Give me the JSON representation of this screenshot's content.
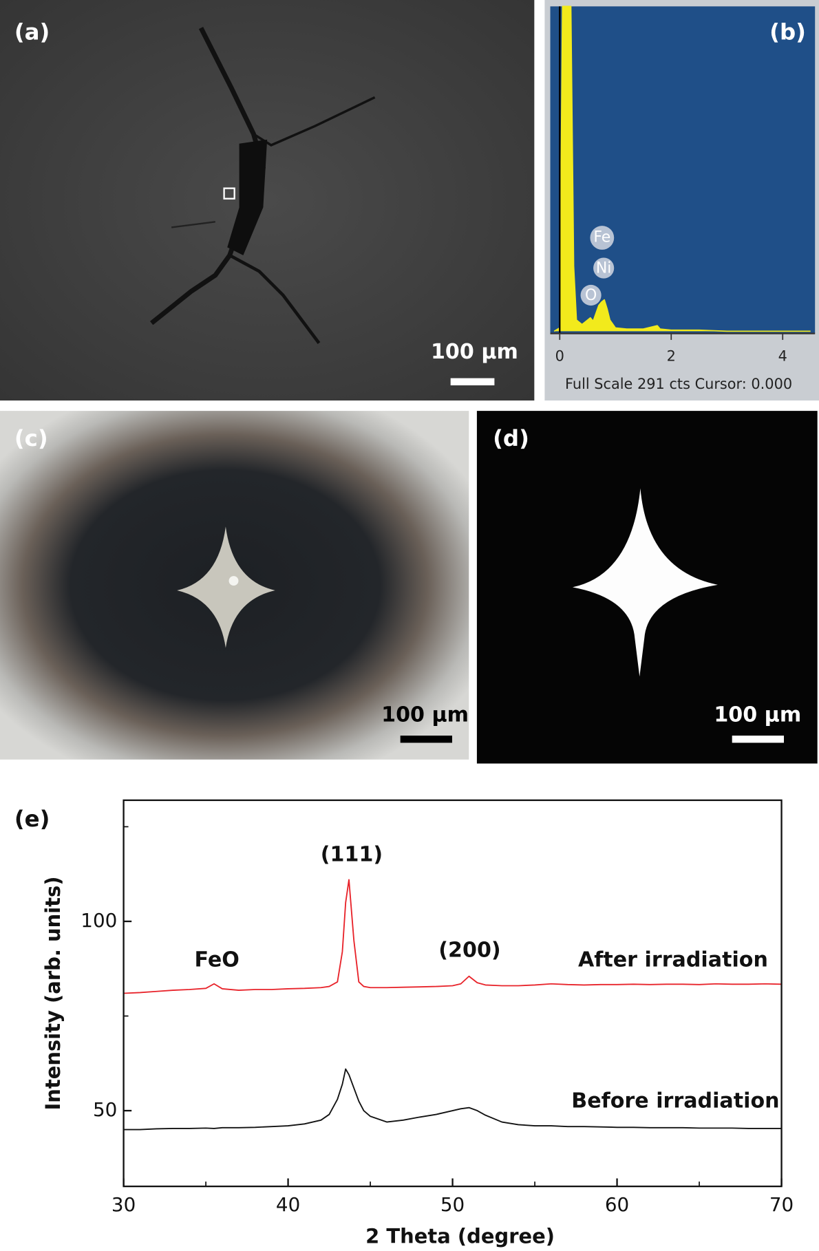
{
  "panels": [
    {
      "label": "(a)",
      "scale_bar": "100 μm"
    },
    {
      "label": "(b)"
    },
    {
      "label": "(c)",
      "scale_bar": "100 μm"
    },
    {
      "label": "(d)",
      "scale_bar": "100 μm"
    },
    {
      "label": "(e)"
    }
  ],
  "chart_data": [
    {
      "type": "line",
      "fill": true,
      "color": "#f2ea1c",
      "x": [
        -0.1,
        0,
        0.05,
        0.1,
        0.15,
        0.2,
        0.25,
        0.3,
        0.4,
        0.5,
        0.55,
        0.6,
        0.7,
        0.75,
        0.8,
        0.85,
        0.9,
        1.0,
        1.2,
        1.5,
        1.75,
        1.8,
        2,
        2.5,
        3,
        3.5,
        4,
        4.5
      ],
      "values": [
        2,
        5,
        291,
        291,
        291,
        291,
        60,
        12,
        8,
        12,
        14,
        11,
        25,
        28,
        30,
        22,
        12,
        5,
        4,
        4,
        7,
        4,
        3,
        3,
        2,
        2,
        2,
        2
      ],
      "xlim": [
        -0.17,
        4.58
      ],
      "xticks": [
        0,
        2,
        4
      ],
      "ylim": [
        0,
        291
      ],
      "cursor": 0,
      "annotations": [
        "Fe",
        "Ni",
        "O"
      ],
      "footer": "Full Scale 291 cts Cursor: 0.000"
    },
    {
      "type": "line",
      "x_label": "2 Theta (degree)",
      "y_label": "Intensity (arb. units)",
      "x": [
        30,
        31,
        32,
        33,
        34,
        35,
        35.5,
        36,
        37,
        38,
        39,
        40,
        41,
        42,
        42.5,
        43,
        43.3,
        43.5,
        43.7,
        44,
        44.3,
        44.6,
        45,
        46,
        47,
        48,
        49,
        50,
        50.5,
        51,
        51.5,
        52,
        53,
        54,
        55,
        56,
        57,
        58,
        59,
        60,
        61,
        62,
        63,
        64,
        65,
        66,
        67,
        68,
        69,
        70
      ],
      "series": [
        {
          "name": "After irradiation",
          "color": "#e8232a",
          "values": [
            81,
            81.2,
            81.5,
            81.8,
            82,
            82.3,
            83.5,
            82.2,
            81.8,
            82,
            82,
            82.2,
            82.3,
            82.5,
            82.8,
            84,
            92,
            105,
            111,
            95,
            84,
            82.8,
            82.5,
            82.5,
            82.6,
            82.7,
            82.8,
            83,
            83.5,
            85.5,
            83.8,
            83.2,
            83,
            83,
            83.2,
            83.5,
            83.3,
            83.2,
            83.3,
            83.3,
            83.4,
            83.3,
            83.4,
            83.4,
            83.3,
            83.5,
            83.4,
            83.4,
            83.5,
            83.4
          ]
        },
        {
          "name": "Before irradiation",
          "color": "#111111",
          "values": [
            45,
            45,
            45.2,
            45.3,
            45.3,
            45.4,
            45.3,
            45.5,
            45.5,
            45.6,
            45.8,
            46,
            46.5,
            47.5,
            49,
            53,
            57,
            61,
            59.5,
            56,
            52.5,
            50,
            48.5,
            47,
            47.5,
            48.3,
            49,
            50,
            50.5,
            50.8,
            50,
            48.8,
            47,
            46.3,
            46,
            46,
            45.8,
            45.8,
            45.7,
            45.6,
            45.6,
            45.5,
            45.5,
            45.5,
            45.4,
            45.4,
            45.4,
            45.3,
            45.3,
            45.3
          ]
        }
      ],
      "xlim": [
        30,
        70
      ],
      "xticks": [
        30,
        40,
        50,
        60,
        70
      ],
      "xminor": [
        35,
        45,
        55,
        65
      ],
      "ylim": [
        30,
        132
      ],
      "yticks": [
        50,
        100
      ],
      "yminor": [
        75,
        125
      ],
      "annotations": [
        "FeO",
        "(111)",
        "(200)"
      ]
    }
  ]
}
